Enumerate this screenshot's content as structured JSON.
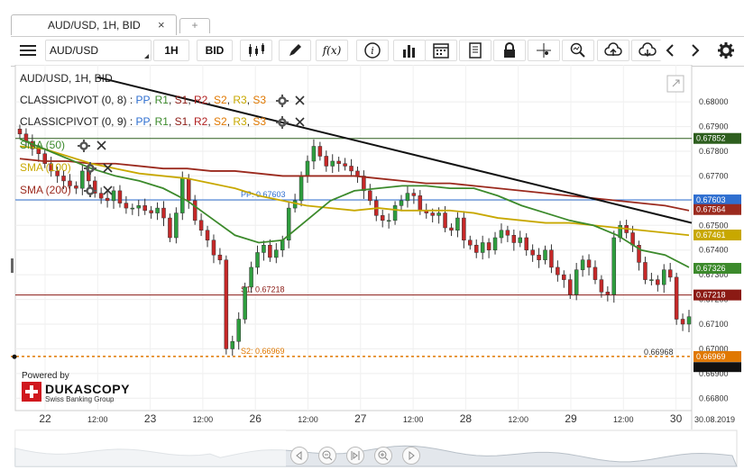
{
  "tab": {
    "title": "AUD/USD, 1H, BID",
    "close": "×",
    "new": "+"
  },
  "toolbar": {
    "symbol": "AUD/USD",
    "period": "1H",
    "side": "BID",
    "fx": "f(x)"
  },
  "chart_data": {
    "type": "candlestick",
    "title": "AUD/USD, 1H, BID",
    "ylim": [
      0.6675,
      0.6815
    ],
    "y_ticks": [
      "0.68000",
      "0.67900",
      "0.67800",
      "0.67700",
      "0.67600",
      "0.67500",
      "0.67400",
      "0.67300",
      "0.67200",
      "0.67100",
      "0.67000",
      "0.66900",
      "0.66800"
    ],
    "x_ticks": [
      "22",
      "12:00",
      "23",
      "12:00",
      "26",
      "12:00",
      "27",
      "12:00",
      "28",
      "12:00",
      "29",
      "12:00",
      "30"
    ],
    "date_label": "30.08.2019",
    "pivots": [
      {
        "name": "PP",
        "value": 0.67603,
        "text": "PP: 0.67603"
      },
      {
        "name": "S1",
        "value": 0.67218,
        "text": "S1: 0.67218"
      },
      {
        "name": "S2",
        "value": 0.66969,
        "text": "S2: 0.66969"
      },
      {
        "name": "R1",
        "value": 0.67852,
        "text": "R1: 0.67852"
      }
    ],
    "indicators": [
      {
        "label": "CLASSICPIVOT (0, 8)",
        "components": [
          "PP",
          "R1",
          "S1",
          "R2",
          "S2",
          "R3",
          "S3"
        ]
      },
      {
        "label": "CLASSICPIVOT (0, 9)",
        "components": [
          "PP",
          "R1",
          "S1",
          "R2",
          "S2",
          "R3",
          "S3"
        ]
      },
      {
        "label": "SMA (50)",
        "color": "#3c8a2c",
        "last": 0.67326
      },
      {
        "label": "SMA (100)",
        "color": "#c8a800",
        "last": 0.67461
      },
      {
        "label": "SMA (200)",
        "color": "#9b2a1e",
        "last": 0.67564
      }
    ],
    "price_labels": [
      {
        "text": "0.67852",
        "value": 0.67852,
        "color": "#2d5e1e"
      },
      {
        "text": "0.67603",
        "value": 0.67603,
        "color": "#2f6fd0"
      },
      {
        "text": "0.67564",
        "value": 0.67564,
        "color": "#9b2a1e"
      },
      {
        "text": "0.67461",
        "value": 0.67461,
        "color": "#c8a800"
      },
      {
        "text": "0.67326",
        "value": 0.67326,
        "color": "#3c8a2c"
      },
      {
        "text": "0.67218",
        "value": 0.67218,
        "color": "#8b1a14"
      },
      {
        "text": "0.66969",
        "value": 0.66969,
        "color": "#e07800"
      }
    ],
    "current_price": {
      "value": 0.66968,
      "text": "0.66968"
    },
    "closes": [
      0.6787,
      0.6784,
      0.6781,
      0.6779,
      0.6775,
      0.6772,
      0.677,
      0.6768,
      0.6766,
      0.6765,
      0.6772,
      0.6768,
      0.6763,
      0.6761,
      0.676,
      0.6764,
      0.6759,
      0.6757,
      0.6757,
      0.6758,
      0.6756,
      0.6755,
      0.6757,
      0.6753,
      0.6745,
      0.6755,
      0.6769,
      0.676,
      0.6752,
      0.6748,
      0.6744,
      0.6738,
      0.6736,
      0.67,
      0.6703,
      0.6712,
      0.6725,
      0.6733,
      0.6739,
      0.6742,
      0.6737,
      0.674,
      0.6744,
      0.6757,
      0.676,
      0.677,
      0.6776,
      0.6782,
      0.6778,
      0.6774,
      0.6776,
      0.6775,
      0.6774,
      0.6772,
      0.677,
      0.6764,
      0.676,
      0.6754,
      0.6752,
      0.6752,
      0.6758,
      0.676,
      0.6763,
      0.6762,
      0.6756,
      0.6755,
      0.6754,
      0.6755,
      0.6749,
      0.6748,
      0.6753,
      0.6744,
      0.6742,
      0.6739,
      0.6743,
      0.674,
      0.6745,
      0.6748,
      0.6746,
      0.6743,
      0.6745,
      0.674,
      0.6738,
      0.6736,
      0.674,
      0.6733,
      0.673,
      0.6728,
      0.6722,
      0.6732,
      0.6736,
      0.6733,
      0.6728,
      0.6723,
      0.6722,
      0.6745,
      0.675,
      0.6747,
      0.6742,
      0.6735,
      0.6728,
      0.6728,
      0.6726,
      0.6732,
      0.6729,
      0.6712,
      0.671,
      0.6713
    ],
    "sma50": [
      0.6785,
      0.6781,
      0.6777,
      0.6773,
      0.677,
      0.6768,
      0.6765,
      0.676,
      0.6753,
      0.6746,
      0.6743,
      0.6744,
      0.6752,
      0.676,
      0.6764,
      0.6765,
      0.6766,
      0.6766,
      0.6765,
      0.6765,
      0.6762,
      0.6758,
      0.6755,
      0.6752,
      0.675,
      0.6746,
      0.674,
      0.6738,
      0.6733
    ],
    "sma100": [
      0.6782,
      0.6781,
      0.6778,
      0.6775,
      0.6773,
      0.6771,
      0.677,
      0.6769,
      0.6767,
      0.6765,
      0.6762,
      0.676,
      0.6758,
      0.6757,
      0.6756,
      0.6757,
      0.6756,
      0.6756,
      0.6756,
      0.6755,
      0.6753,
      0.6752,
      0.6751,
      0.6751,
      0.675,
      0.6749,
      0.6748,
      0.6747,
      0.6746
    ],
    "sma200": [
      0.6777,
      0.6776,
      0.6776,
      0.6775,
      0.6775,
      0.6774,
      0.6773,
      0.6773,
      0.6772,
      0.6772,
      0.6771,
      0.677,
      0.677,
      0.677,
      0.677,
      0.6769,
      0.6768,
      0.6767,
      0.6767,
      0.6766,
      0.6765,
      0.6764,
      0.6763,
      0.6762,
      0.6761,
      0.676,
      0.6759,
      0.6758,
      0.6756
    ],
    "trendline": [
      0.681,
      0.6751
    ]
  },
  "logo": {
    "powered": "Powered by",
    "brand": "DUKASCOPY",
    "sub": "Swiss Banking Group"
  },
  "colors": {
    "pp": "#2f6fd0",
    "r1": "#3c8a2c",
    "s1": "#8b1a14",
    "s2": "#e07800",
    "r2": "#9b2a1e",
    "r3": "#c8a800",
    "s3": "#e07800"
  }
}
